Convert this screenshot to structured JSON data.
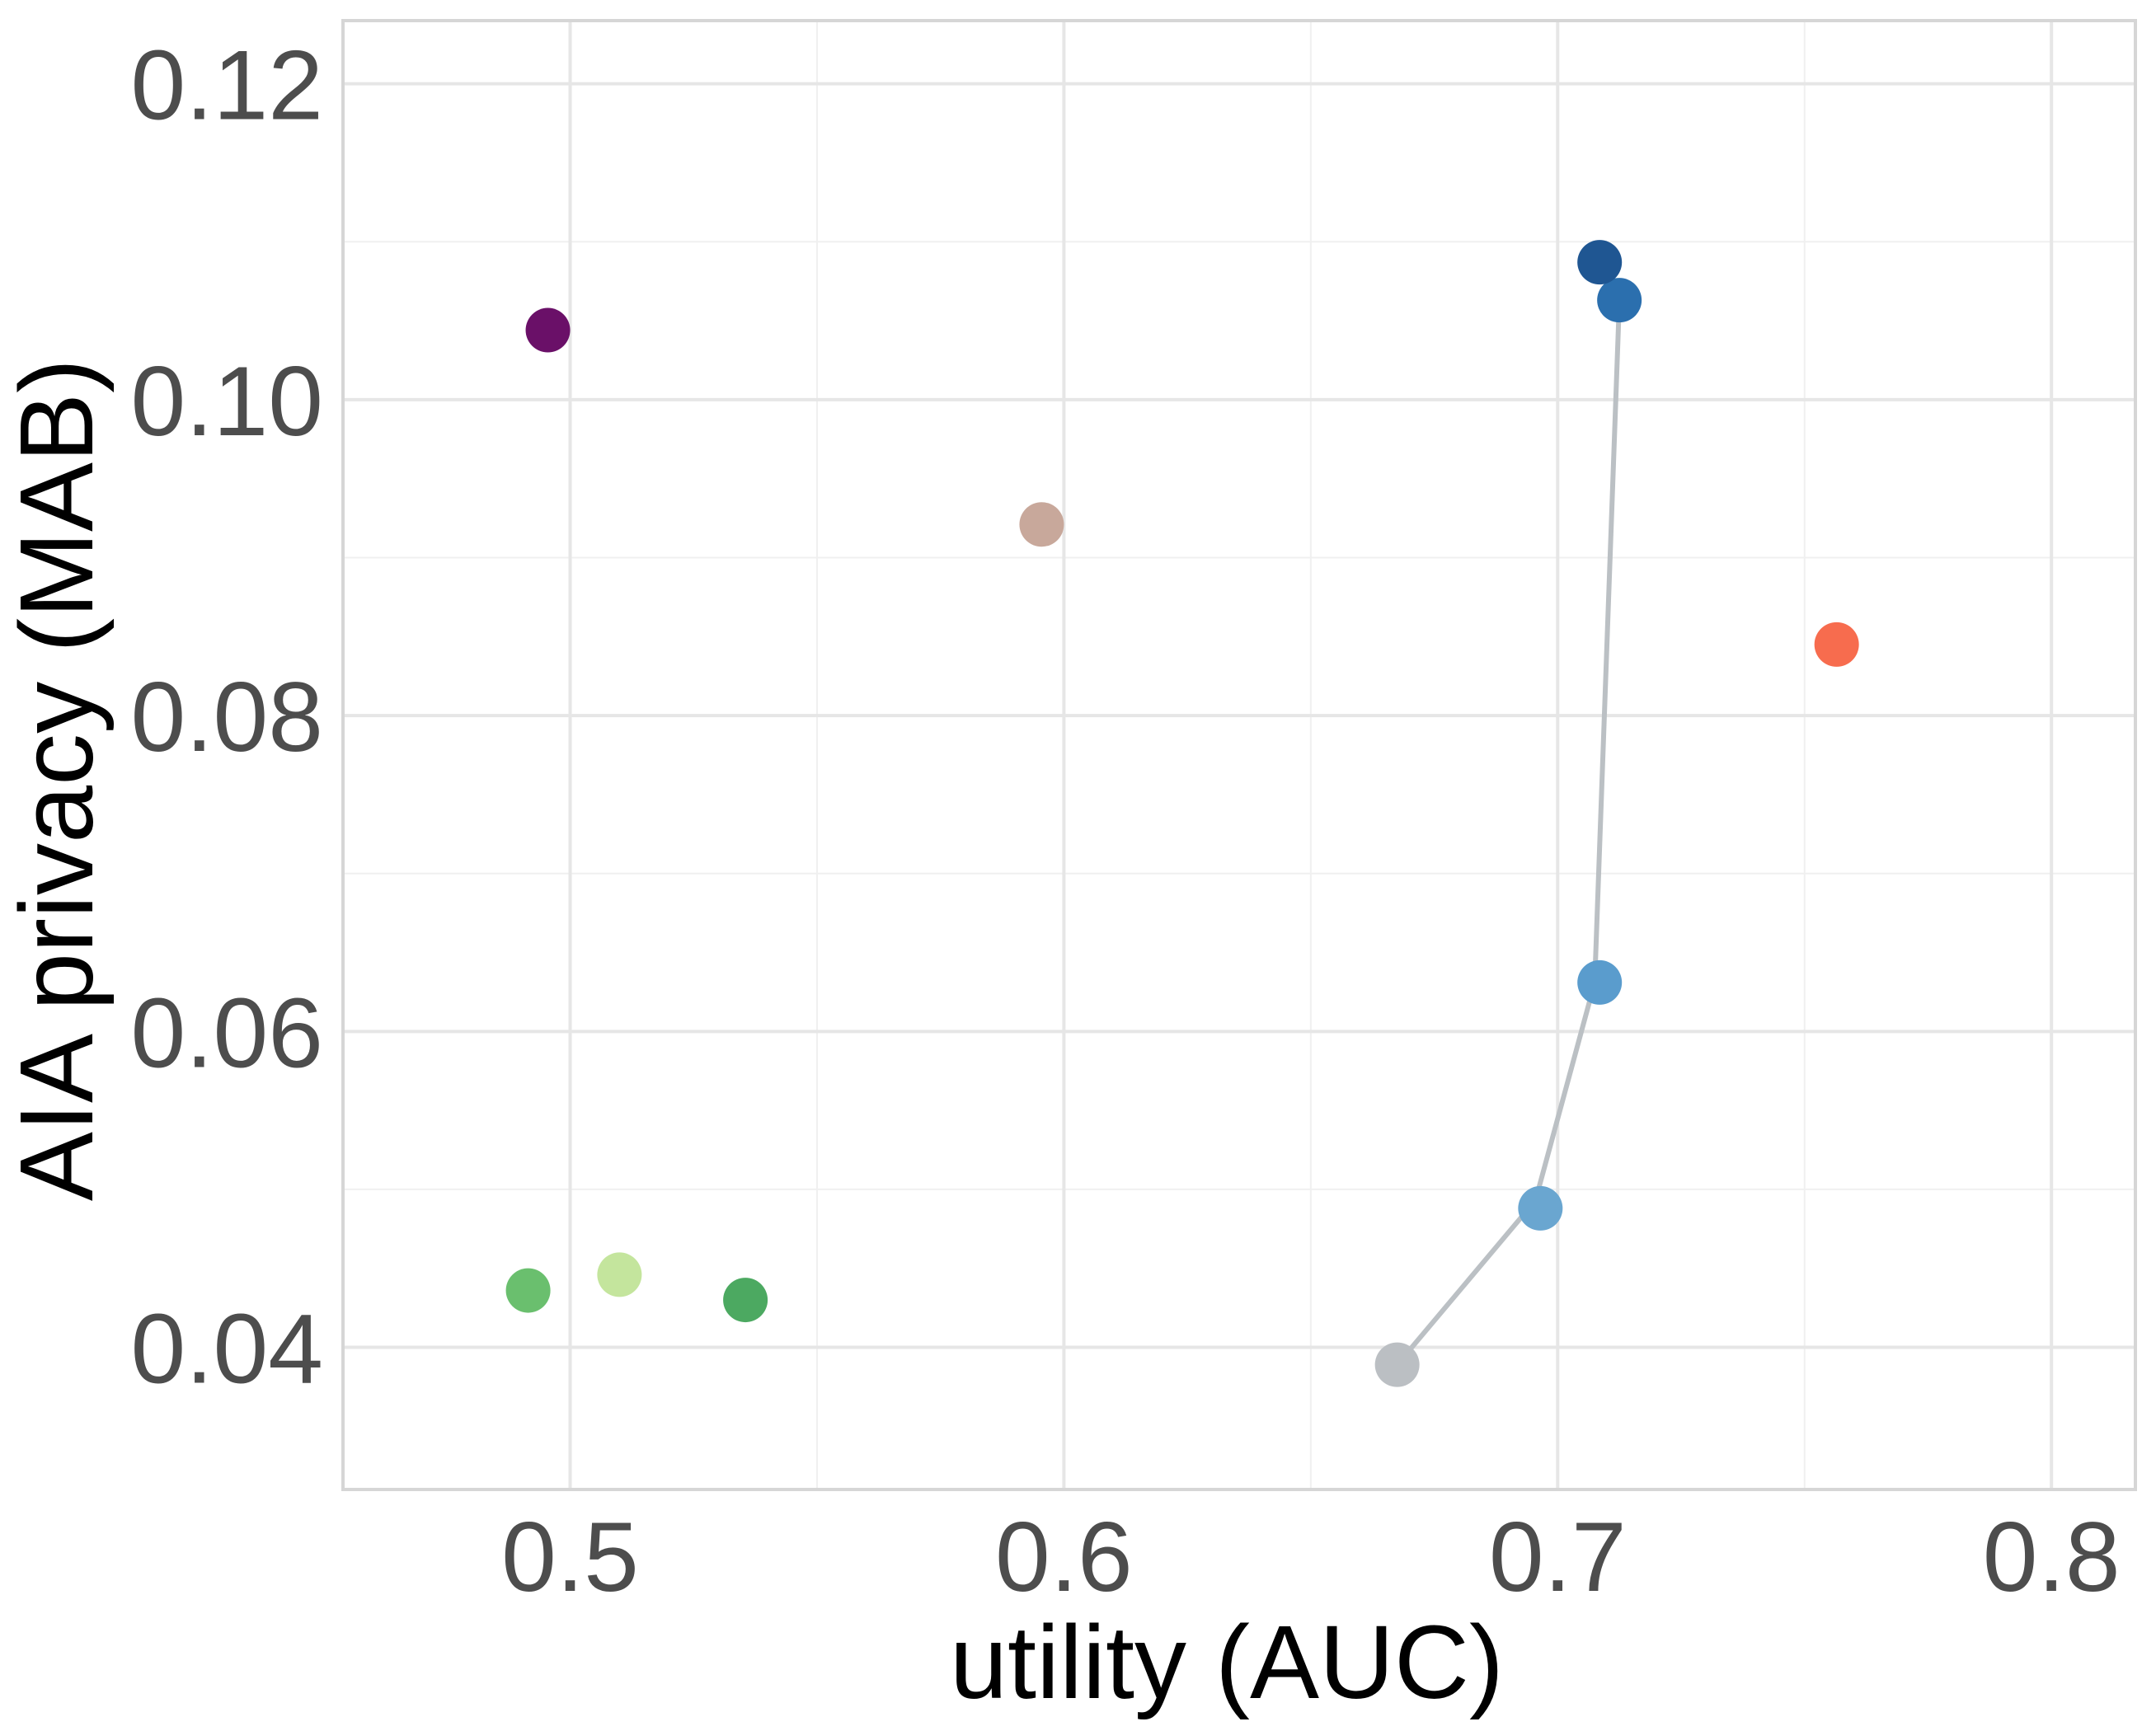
{
  "chart_data": {
    "type": "scatter",
    "title": "",
    "xlabel": "utility (AUC)",
    "ylabel": "AIA privacy (MAB)",
    "xlim": [
      0.454,
      0.817
    ],
    "ylim": [
      0.031,
      0.124
    ],
    "x_ticks": [
      0.5,
      0.6,
      0.7,
      0.8
    ],
    "x_tick_labels": [
      "0.5",
      "0.6",
      "0.7",
      "0.8"
    ],
    "x_minor_ticks": [
      0.55,
      0.65,
      0.75
    ],
    "y_ticks": [
      0.04,
      0.06,
      0.08,
      0.1,
      0.12
    ],
    "y_tick_labels": [
      "0.04",
      "0.06",
      "0.08",
      "0.10",
      "0.12"
    ],
    "y_minor_ticks": [
      0.05,
      0.07,
      0.09,
      0.11
    ],
    "grid": true,
    "legend": "none",
    "line_color": "#bbc0c4",
    "points": [
      {
        "x": 0.4955,
        "y": 0.1044,
        "color": "#6a1068"
      },
      {
        "x": 0.5955,
        "y": 0.0921,
        "color": "#c8a89b"
      },
      {
        "x": 0.7565,
        "y": 0.0845,
        "color": "#f76c4e"
      },
      {
        "x": 0.4915,
        "y": 0.0436,
        "color": "#6abf6e"
      },
      {
        "x": 0.51,
        "y": 0.0446,
        "color": "#c4e59d"
      },
      {
        "x": 0.5355,
        "y": 0.043,
        "color": "#4ca961"
      },
      {
        "x": 0.6675,
        "y": 0.0389,
        "color": "#bbbfc3"
      },
      {
        "x": 0.6965,
        "y": 0.0488,
        "color": "#6aa6d0"
      },
      {
        "x": 0.7085,
        "y": 0.0631,
        "color": "#5a9ccd"
      },
      {
        "x": 0.7125,
        "y": 0.1063,
        "color": "#2b6fae"
      },
      {
        "x": 0.7085,
        "y": 0.1087,
        "color": "#1f5692"
      }
    ],
    "line_path": [
      {
        "x": 0.6675,
        "y": 0.0389
      },
      {
        "x": 0.6955,
        "y": 0.0493
      },
      {
        "x": 0.7075,
        "y": 0.0631
      },
      {
        "x": 0.7125,
        "y": 0.1063
      },
      {
        "x": 0.7085,
        "y": 0.1087
      }
    ]
  }
}
